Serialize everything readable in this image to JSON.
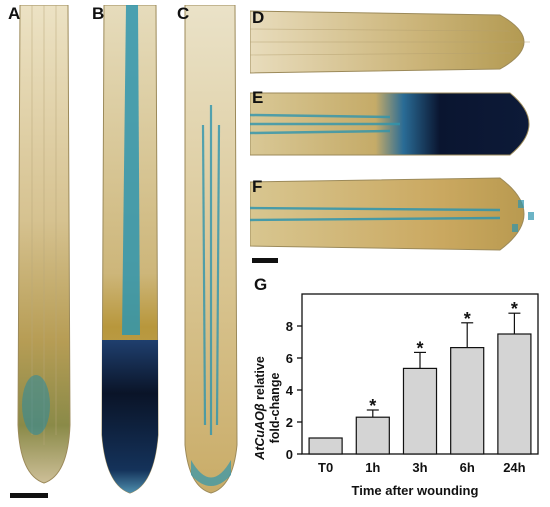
{
  "panel_labels": {
    "a": "A",
    "b": "B",
    "c": "C",
    "d": "D",
    "e": "E",
    "f": "F",
    "g": "G"
  },
  "colors": {
    "tissue_light": "#e4d6b0",
    "tissue_tan": "#c9b27a",
    "tissue_olive": "#a98f45",
    "gus_blue": "#2f95ae",
    "gus_dark": "#0a1530",
    "bar_fill": "#d4d4d4"
  },
  "chart_data": {
    "type": "bar",
    "categories": [
      "T0",
      "1h",
      "3h",
      "6h",
      "24h"
    ],
    "values": [
      1.0,
      2.3,
      5.35,
      6.65,
      7.5
    ],
    "errors": [
      0,
      0.45,
      1.0,
      1.55,
      1.3
    ],
    "significance": [
      "",
      "*",
      "*",
      "*",
      "*"
    ],
    "ylabel_gene": "AtCuAOβ",
    "ylabel_rest": "relative",
    "ylabel_line2": "fold-change",
    "xlabel": "Time after wounding",
    "yticks": [
      "0",
      "2",
      "4",
      "6",
      "8"
    ],
    "ylim": [
      0,
      10
    ]
  }
}
